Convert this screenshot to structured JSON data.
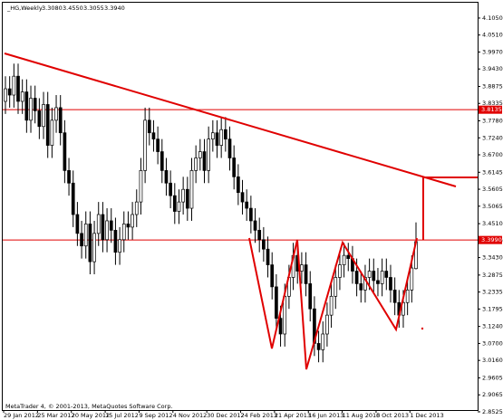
{
  "chart_data": {
    "type": "candlestick",
    "title": "_HG,Weekly",
    "ohlc_labels": [
      "3.3080",
      "3.4550",
      "3.3055",
      "3.3940"
    ],
    "footer": "MetaTrader 4, © 2001-2013, MetaQuotes Software Corp.",
    "categories": [
      "29 Jan 2012",
      null,
      null,
      null,
      null,
      null,
      null,
      null,
      "25 Mar 2012",
      null,
      null,
      null,
      null,
      null,
      null,
      null,
      "20 May 2012",
      null,
      null,
      null,
      null,
      null,
      null,
      null,
      "15 Jul 2012",
      null,
      null,
      null,
      null,
      null,
      null,
      null,
      "9 Sep 2012",
      null,
      null,
      null,
      null,
      null,
      null,
      null,
      "4 Nov 2012",
      null,
      null,
      null,
      null,
      null,
      null,
      null,
      "30 Dec 2012",
      null,
      null,
      null,
      null,
      null,
      null,
      null,
      "24 Feb 2013",
      null,
      null,
      null,
      null,
      null,
      null,
      null,
      "21 Apr 2013",
      null,
      null,
      null,
      null,
      null,
      null,
      null,
      "16 Jun 2013",
      null,
      null,
      null,
      null,
      null,
      null,
      null,
      "11 Aug 2013",
      null,
      null,
      null,
      null,
      null,
      null,
      null,
      "6 Oct 2013",
      null,
      null,
      null,
      null,
      null,
      null,
      null,
      "1 Dec 2013",
      null
    ],
    "open": [
      3.84,
      3.88,
      3.86,
      3.92,
      3.84,
      3.87,
      3.78,
      3.85,
      3.81,
      3.76,
      3.83,
      3.7,
      3.78,
      3.82,
      3.74,
      3.62,
      3.58,
      3.48,
      3.42,
      3.38,
      3.45,
      3.33,
      3.42,
      3.48,
      3.4,
      3.46,
      3.43,
      3.36,
      3.4,
      3.45,
      3.44,
      3.48,
      3.52,
      3.62,
      3.78,
      3.74,
      3.72,
      3.68,
      3.62,
      3.58,
      3.54,
      3.49,
      3.52,
      3.56,
      3.5,
      3.62,
      3.66,
      3.68,
      3.62,
      3.72,
      3.74,
      3.7,
      3.75,
      3.72,
      3.66,
      3.6,
      3.55,
      3.52,
      3.5,
      3.46,
      3.43,
      3.4,
      3.37,
      3.32,
      3.25,
      3.15,
      3.1,
      3.22,
      3.28,
      3.35,
      3.3,
      3.32,
      3.26,
      3.18,
      3.07,
      3.05,
      3.1,
      3.16,
      3.22,
      3.28,
      3.32,
      3.35,
      3.34,
      3.3,
      3.26,
      3.24,
      3.28,
      3.3,
      3.27,
      3.26,
      3.3,
      3.28,
      3.24,
      3.2,
      3.16,
      3.2,
      3.24,
      3.308
    ],
    "high": [
      3.92,
      3.92,
      3.96,
      3.96,
      3.91,
      3.91,
      3.89,
      3.89,
      3.85,
      3.87,
      3.87,
      3.82,
      3.86,
      3.86,
      3.78,
      3.66,
      3.62,
      3.52,
      3.46,
      3.49,
      3.49,
      3.46,
      3.52,
      3.52,
      3.5,
      3.5,
      3.47,
      3.44,
      3.49,
      3.49,
      3.52,
      3.56,
      3.66,
      3.82,
      3.82,
      3.78,
      3.76,
      3.72,
      3.66,
      3.62,
      3.58,
      3.56,
      3.6,
      3.6,
      3.66,
      3.7,
      3.72,
      3.72,
      3.76,
      3.78,
      3.78,
      3.79,
      3.79,
      3.76,
      3.7,
      3.64,
      3.59,
      3.56,
      3.54,
      3.5,
      3.47,
      3.44,
      3.41,
      3.36,
      3.29,
      3.19,
      3.26,
      3.32,
      3.39,
      3.39,
      3.36,
      3.36,
      3.3,
      3.22,
      3.11,
      3.14,
      3.2,
      3.26,
      3.32,
      3.36,
      3.39,
      3.39,
      3.38,
      3.34,
      3.3,
      3.32,
      3.34,
      3.34,
      3.31,
      3.34,
      3.34,
      3.32,
      3.28,
      3.24,
      3.24,
      3.28,
      3.35,
      3.455
    ],
    "low": [
      3.8,
      3.82,
      3.82,
      3.8,
      3.8,
      3.74,
      3.74,
      3.77,
      3.72,
      3.72,
      3.66,
      3.66,
      3.74,
      3.7,
      3.58,
      3.54,
      3.44,
      3.38,
      3.34,
      3.34,
      3.29,
      3.29,
      3.38,
      3.36,
      3.36,
      3.39,
      3.32,
      3.32,
      3.36,
      3.4,
      3.4,
      3.44,
      3.48,
      3.58,
      3.7,
      3.68,
      3.64,
      3.58,
      3.54,
      3.5,
      3.45,
      3.45,
      3.48,
      3.46,
      3.46,
      3.58,
      3.62,
      3.58,
      3.58,
      3.68,
      3.66,
      3.66,
      3.68,
      3.62,
      3.56,
      3.51,
      3.48,
      3.46,
      3.42,
      3.39,
      3.36,
      3.33,
      3.28,
      3.21,
      3.11,
      3.06,
      3.06,
      3.18,
      3.24,
      3.26,
      3.26,
      3.22,
      3.14,
      3.03,
      3.01,
      3.01,
      3.06,
      3.12,
      3.18,
      3.24,
      3.28,
      3.3,
      3.26,
      3.22,
      3.2,
      3.2,
      3.24,
      3.23,
      3.22,
      3.22,
      3.24,
      3.2,
      3.16,
      3.12,
      3.12,
      3.16,
      3.2,
      3.3055
    ],
    "close": [
      3.88,
      3.86,
      3.92,
      3.84,
      3.87,
      3.78,
      3.85,
      3.81,
      3.76,
      3.83,
      3.7,
      3.78,
      3.82,
      3.74,
      3.62,
      3.58,
      3.48,
      3.42,
      3.38,
      3.45,
      3.33,
      3.42,
      3.48,
      3.4,
      3.46,
      3.43,
      3.36,
      3.4,
      3.45,
      3.44,
      3.48,
      3.52,
      3.62,
      3.78,
      3.74,
      3.72,
      3.68,
      3.62,
      3.58,
      3.54,
      3.49,
      3.52,
      3.56,
      3.5,
      3.62,
      3.66,
      3.68,
      3.62,
      3.72,
      3.74,
      3.7,
      3.75,
      3.72,
      3.66,
      3.6,
      3.55,
      3.52,
      3.5,
      3.46,
      3.43,
      3.4,
      3.37,
      3.32,
      3.25,
      3.15,
      3.1,
      3.22,
      3.28,
      3.35,
      3.3,
      3.32,
      3.26,
      3.18,
      3.07,
      3.05,
      3.1,
      3.16,
      3.22,
      3.28,
      3.32,
      3.35,
      3.34,
      3.3,
      3.26,
      3.24,
      3.28,
      3.3,
      3.27,
      3.26,
      3.3,
      3.28,
      3.24,
      3.2,
      3.16,
      3.2,
      3.24,
      3.31,
      3.394
    ],
    "ylim": [
      2.861,
      4.148
    ],
    "yticks": [
      {
        "value": 4.105,
        "label": "4.1050"
      },
      {
        "value": 4.051,
        "label": "4.0510"
      },
      {
        "value": 3.997,
        "label": "3.9970"
      },
      {
        "value": 3.943,
        "label": "3.9430"
      },
      {
        "value": 3.8875,
        "label": "3.8875"
      },
      {
        "value": 3.8335,
        "label": "3.8335"
      },
      {
        "value": 3.778,
        "label": "3.7780"
      },
      {
        "value": 3.724,
        "label": "3.7240"
      },
      {
        "value": 3.67,
        "label": "3.6700"
      },
      {
        "value": 3.6145,
        "label": "3.6145"
      },
      {
        "value": 3.5605,
        "label": "3.5605"
      },
      {
        "value": 3.5065,
        "label": "3.5065"
      },
      {
        "value": 3.451,
        "label": "3.4510"
      },
      {
        "value": 3.397,
        "label": "3.3970"
      },
      {
        "value": 3.343,
        "label": "3.3430"
      },
      {
        "value": 3.2875,
        "label": "3.2875"
      },
      {
        "value": 3.2335,
        "label": "3.2335"
      },
      {
        "value": 3.1795,
        "label": "3.1795"
      },
      {
        "value": 3.124,
        "label": "3.1240"
      },
      {
        "value": 3.07,
        "label": "3.0700"
      },
      {
        "value": 3.016,
        "label": "3.0160"
      },
      {
        "value": 2.9605,
        "label": "2.9605"
      },
      {
        "value": 2.9065,
        "label": "2.9065"
      },
      {
        "value": 2.8525,
        "label": "2.8525"
      }
    ],
    "hlines": [
      {
        "value": 3.8135,
        "label": "3.8135"
      },
      {
        "value": 3.399,
        "label": "3.3990"
      }
    ],
    "hline_color": "#e00000",
    "up_color": "#ffffff",
    "down_color": "#000000"
  }
}
